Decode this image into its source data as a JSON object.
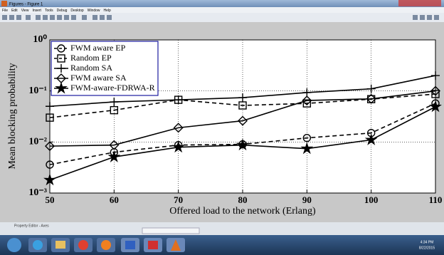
{
  "window": {
    "title": "Figures - Figure 1",
    "menu": [
      "File",
      "Edit",
      "View",
      "Insert",
      "Tools",
      "Debug",
      "Desktop",
      "Window",
      "Help"
    ],
    "property_editor": "Property Editor - Axes"
  },
  "taskbar": {
    "time": "4:34 PM",
    "date": "8/22/2015"
  },
  "chart_data": {
    "type": "line",
    "x_label": "Offered load to the network (Erlang)",
    "y_label": "Mean blocking probability",
    "x": [
      50,
      60,
      70,
      80,
      90,
      100,
      110
    ],
    "xlim": [
      50,
      110
    ],
    "xticks": [
      50,
      60,
      70,
      80,
      90,
      100,
      110
    ],
    "ylim": [
      0.001,
      1
    ],
    "log_y": true,
    "yticks": [
      {
        "value": 0.001,
        "label": "10⁻³"
      },
      {
        "value": 0.01,
        "label": "10⁻²"
      },
      {
        "value": 0.1,
        "label": "10⁻¹"
      },
      {
        "value": 1,
        "label": "10⁰"
      }
    ],
    "grid": true,
    "legend": "upper-left",
    "series": [
      {
        "name": "FWM aware EP",
        "color": "#000000",
        "marker": "circle",
        "dashed": true,
        "values": [
          0.0036,
          0.0063,
          0.0087,
          0.009,
          0.012,
          0.015,
          0.057
        ]
      },
      {
        "name": "Random EP",
        "color": "#000000",
        "marker": "square",
        "dashed": true,
        "values": [
          0.03,
          0.042,
          0.067,
          0.052,
          0.057,
          0.069,
          0.087
        ]
      },
      {
        "name": "Random SA",
        "color": "#000000",
        "marker": "plus",
        "dashed": false,
        "values": [
          0.05,
          0.061,
          0.067,
          0.074,
          0.093,
          0.11,
          0.2
        ]
      },
      {
        "name": "FWM aware SA",
        "color": "#000000",
        "marker": "diamond",
        "dashed": false,
        "values": [
          0.0083,
          0.0087,
          0.019,
          0.026,
          0.065,
          0.07,
          0.1
        ]
      },
      {
        "name": "FWM-aware-FDRWA-R",
        "color": "#000000",
        "marker": "star",
        "dashed": false,
        "values": [
          0.0018,
          0.0051,
          0.0079,
          0.0087,
          0.0074,
          0.011,
          0.049
        ]
      }
    ]
  }
}
